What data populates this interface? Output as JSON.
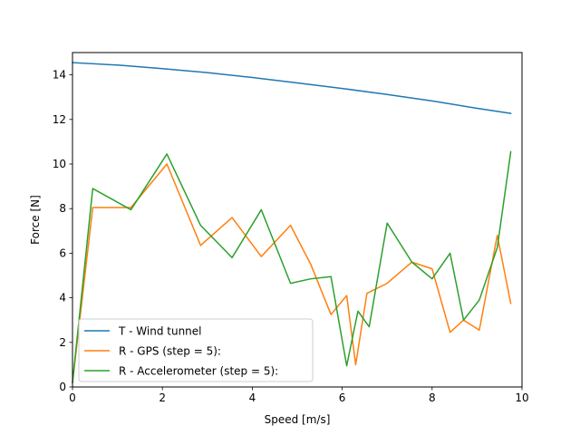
{
  "chart_data": {
    "type": "line",
    "xlabel": "Speed [m/s]",
    "ylabel": "Force [N]",
    "xlim": [
      0,
      10
    ],
    "ylim": [
      0,
      15
    ],
    "xticks": [
      0,
      2,
      4,
      6,
      8,
      10
    ],
    "yticks": [
      0,
      2,
      4,
      6,
      8,
      10,
      12,
      14
    ],
    "grid": false,
    "legend_position": "lower-left",
    "series": [
      {
        "name": "T - Wind tunnel",
        "color": "#1f77b4",
        "x": [
          0,
          1,
          2,
          3,
          4,
          5,
          6,
          7,
          8,
          9,
          9.75
        ],
        "y": [
          14.55,
          14.44,
          14.28,
          14.1,
          13.88,
          13.64,
          13.39,
          13.12,
          12.83,
          12.5,
          12.27
        ]
      },
      {
        "name": "R - GPS (step = 5):",
        "color": "#ff7f0e",
        "x": [
          0,
          0.45,
          1.3,
          2.1,
          2.85,
          3.55,
          4.2,
          4.85,
          5.3,
          5.75,
          6.1,
          6.3,
          6.55,
          7.0,
          7.55,
          8.0,
          8.4,
          8.7,
          9.05,
          9.45,
          9.75
        ],
        "y": [
          0.2,
          8.05,
          8.05,
          10.0,
          6.35,
          7.6,
          5.85,
          7.25,
          5.5,
          3.25,
          4.1,
          1.0,
          4.2,
          4.65,
          5.6,
          5.3,
          2.45,
          3.0,
          2.55,
          6.8,
          3.75
        ]
      },
      {
        "name": "R - Accelerometer (step = 5):",
        "color": "#2ca02c",
        "x": [
          0,
          0.45,
          1.3,
          2.1,
          2.85,
          3.55,
          4.2,
          4.85,
          5.3,
          5.75,
          6.1,
          6.35,
          6.6,
          7.0,
          7.55,
          8.0,
          8.4,
          8.7,
          9.05,
          9.45,
          9.75
        ],
        "y": [
          0.2,
          8.9,
          7.95,
          10.45,
          7.25,
          5.8,
          7.95,
          4.65,
          4.85,
          4.95,
          0.95,
          3.4,
          2.7,
          7.35,
          5.6,
          4.85,
          6.0,
          3.0,
          3.9,
          6.25,
          10.55
        ]
      }
    ]
  }
}
